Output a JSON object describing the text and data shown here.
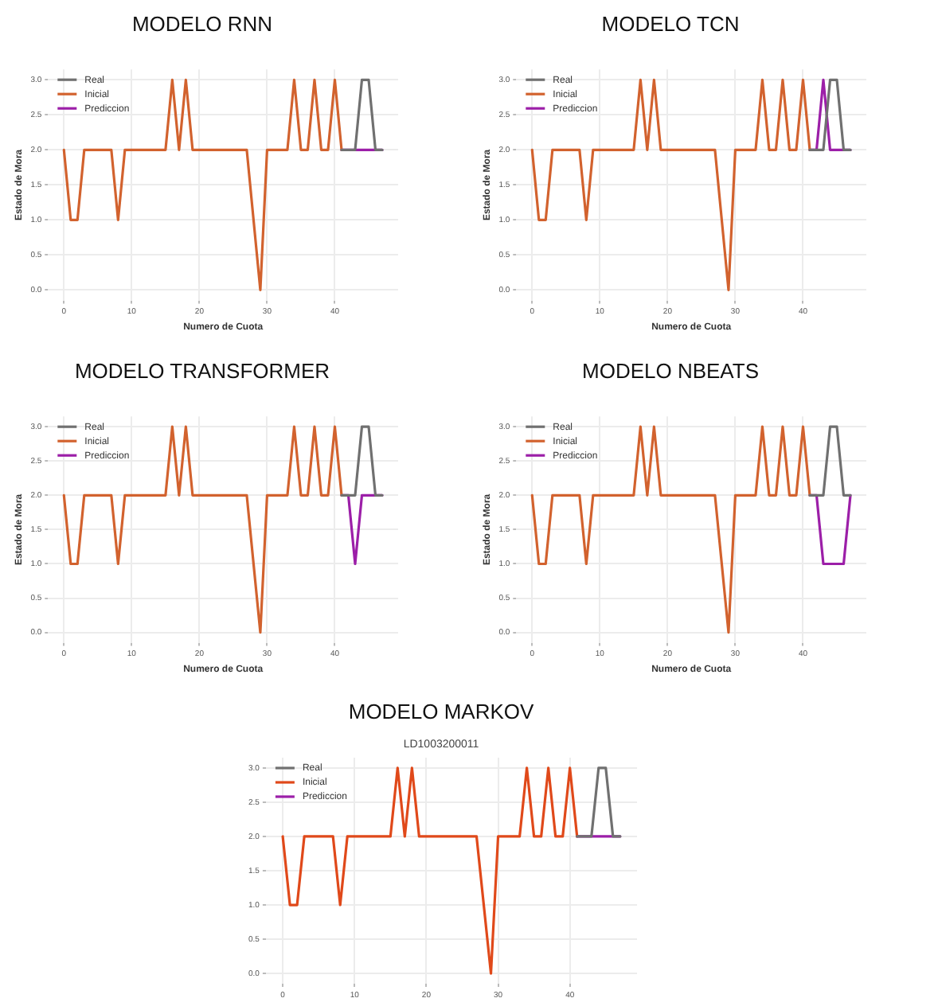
{
  "chart_data": [
    {
      "type": "line",
      "title": "MODELO RNN",
      "xlabel": "Numero de Cuota",
      "ylabel": "Estado de Mora",
      "xlim": [
        -2.35,
        49.35
      ],
      "ylim": [
        -0.15,
        3.15
      ],
      "xticks": [
        0,
        10,
        20,
        30,
        40
      ],
      "yticks": [
        {
          "value": 0,
          "label": "0.0"
        },
        0.5,
        {
          "value": 1,
          "label": "1.0"
        },
        1.5,
        {
          "value": 2,
          "label": "2.0"
        },
        2.5,
        {
          "value": 3,
          "label": "3.0"
        }
      ],
      "grid": true,
      "legend": "top left",
      "marker": "none",
      "line_style": "solid",
      "series": [
        {
          "name": "Real",
          "color": "#707070",
          "x": [
            41,
            42,
            43,
            44,
            45,
            46,
            47
          ],
          "values": [
            2,
            2,
            2,
            3,
            3,
            2,
            2
          ]
        },
        {
          "name": "Inicial",
          "color": "#d2622e",
          "x": [
            0,
            1,
            2,
            3,
            4,
            5,
            6,
            7,
            8,
            9,
            10,
            11,
            12,
            13,
            14,
            15,
            16,
            17,
            18,
            19,
            20,
            21,
            22,
            23,
            24,
            25,
            26,
            27,
            28,
            29,
            30,
            31,
            32,
            33,
            34,
            35,
            36,
            37,
            38,
            39,
            40,
            41
          ],
          "values": [
            2,
            1,
            1,
            2,
            2,
            2,
            2,
            2,
            1,
            2,
            2,
            2,
            2,
            2,
            2,
            2,
            3,
            2,
            3,
            2,
            2,
            2,
            2,
            2,
            2,
            2,
            2,
            2,
            1,
            0,
            2,
            2,
            2,
            2,
            3,
            2,
            2,
            3,
            2,
            2,
            3,
            2
          ]
        },
        {
          "name": "Prediccion",
          "color": "#9c1fa8",
          "x": [
            41,
            42,
            43,
            44,
            45,
            46,
            47
          ],
          "values": [
            2,
            2,
            2,
            2,
            2,
            2,
            2
          ]
        }
      ]
    },
    {
      "type": "line",
      "title": "MODELO TCN",
      "xlabel": "Numero de Cuota",
      "ylabel": "Estado de Mora",
      "xlim": [
        -2.35,
        49.35
      ],
      "ylim": [
        -0.15,
        3.15
      ],
      "xticks": [
        0,
        10,
        20,
        30,
        40
      ],
      "yticks": [
        {
          "value": 0,
          "label": "0.0"
        },
        0.5,
        {
          "value": 1,
          "label": "1.0"
        },
        1.5,
        {
          "value": 2,
          "label": "2.0"
        },
        2.5,
        {
          "value": 3,
          "label": "3.0"
        }
      ],
      "grid": true,
      "legend": "top left",
      "marker": "none",
      "line_style": "solid",
      "series": [
        {
          "name": "Real",
          "color": "#707070",
          "x": [
            41,
            42,
            43,
            44,
            45,
            46,
            47
          ],
          "values": [
            2,
            2,
            2,
            3,
            3,
            2,
            2
          ]
        },
        {
          "name": "Inicial",
          "color": "#d2622e",
          "x": [
            0,
            1,
            2,
            3,
            4,
            5,
            6,
            7,
            8,
            9,
            10,
            11,
            12,
            13,
            14,
            15,
            16,
            17,
            18,
            19,
            20,
            21,
            22,
            23,
            24,
            25,
            26,
            27,
            28,
            29,
            30,
            31,
            32,
            33,
            34,
            35,
            36,
            37,
            38,
            39,
            40,
            41
          ],
          "values": [
            2,
            1,
            1,
            2,
            2,
            2,
            2,
            2,
            1,
            2,
            2,
            2,
            2,
            2,
            2,
            2,
            3,
            2,
            3,
            2,
            2,
            2,
            2,
            2,
            2,
            2,
            2,
            2,
            1,
            0,
            2,
            2,
            2,
            2,
            3,
            2,
            2,
            3,
            2,
            2,
            3,
            2
          ]
        },
        {
          "name": "Prediccion",
          "color": "#9c1fa8",
          "x": [
            41,
            42,
            43,
            44,
            45,
            46,
            47
          ],
          "values": [
            2,
            2,
            3,
            2,
            2,
            2,
            2
          ]
        }
      ]
    },
    {
      "type": "line",
      "title": "MODELO TRANSFORMER",
      "xlabel": "Numero de Cuota",
      "ylabel": "Estado de Mora",
      "xlim": [
        -2.35,
        49.35
      ],
      "ylim": [
        -0.15,
        3.15
      ],
      "xticks": [
        0,
        10,
        20,
        30,
        40
      ],
      "yticks": [
        {
          "value": 0,
          "label": "0.0"
        },
        0.5,
        {
          "value": 1,
          "label": "1.0"
        },
        1.5,
        {
          "value": 2,
          "label": "2.0"
        },
        2.5,
        {
          "value": 3,
          "label": "3.0"
        }
      ],
      "grid": true,
      "legend": "top left",
      "marker": "none",
      "line_style": "solid",
      "series": [
        {
          "name": "Real",
          "color": "#707070",
          "x": [
            41,
            42,
            43,
            44,
            45,
            46,
            47
          ],
          "values": [
            2,
            2,
            2,
            3,
            3,
            2,
            2
          ]
        },
        {
          "name": "Inicial",
          "color": "#d2622e",
          "x": [
            0,
            1,
            2,
            3,
            4,
            5,
            6,
            7,
            8,
            9,
            10,
            11,
            12,
            13,
            14,
            15,
            16,
            17,
            18,
            19,
            20,
            21,
            22,
            23,
            24,
            25,
            26,
            27,
            28,
            29,
            30,
            31,
            32,
            33,
            34,
            35,
            36,
            37,
            38,
            39,
            40,
            41
          ],
          "values": [
            2,
            1,
            1,
            2,
            2,
            2,
            2,
            2,
            1,
            2,
            2,
            2,
            2,
            2,
            2,
            2,
            3,
            2,
            3,
            2,
            2,
            2,
            2,
            2,
            2,
            2,
            2,
            2,
            1,
            0,
            2,
            2,
            2,
            2,
            3,
            2,
            2,
            3,
            2,
            2,
            3,
            2
          ]
        },
        {
          "name": "Prediccion",
          "color": "#9c1fa8",
          "x": [
            41,
            42,
            43,
            44,
            45,
            46,
            47
          ],
          "values": [
            2,
            2,
            1,
            2,
            2,
            2,
            2
          ]
        }
      ]
    },
    {
      "type": "line",
      "title": "MODELO NBEATS",
      "xlabel": "Numero de Cuota",
      "ylabel": "Estado de Mora",
      "xlim": [
        -2.35,
        49.35
      ],
      "ylim": [
        -0.15,
        3.15
      ],
      "xticks": [
        0,
        10,
        20,
        30,
        40
      ],
      "yticks": [
        {
          "value": 0,
          "label": "0.0"
        },
        0.5,
        {
          "value": 1,
          "label": "1.0"
        },
        1.5,
        {
          "value": 2,
          "label": "2.0"
        },
        2.5,
        {
          "value": 3,
          "label": "3.0"
        }
      ],
      "grid": true,
      "legend": "top left",
      "marker": "none",
      "line_style": "solid",
      "series": [
        {
          "name": "Real",
          "color": "#707070",
          "x": [
            41,
            42,
            43,
            44,
            45,
            46,
            47
          ],
          "values": [
            2,
            2,
            2,
            3,
            3,
            2,
            2
          ]
        },
        {
          "name": "Inicial",
          "color": "#d2622e",
          "x": [
            0,
            1,
            2,
            3,
            4,
            5,
            6,
            7,
            8,
            9,
            10,
            11,
            12,
            13,
            14,
            15,
            16,
            17,
            18,
            19,
            20,
            21,
            22,
            23,
            24,
            25,
            26,
            27,
            28,
            29,
            30,
            31,
            32,
            33,
            34,
            35,
            36,
            37,
            38,
            39,
            40,
            41
          ],
          "values": [
            2,
            1,
            1,
            2,
            2,
            2,
            2,
            2,
            1,
            2,
            2,
            2,
            2,
            2,
            2,
            2,
            3,
            2,
            3,
            2,
            2,
            2,
            2,
            2,
            2,
            2,
            2,
            2,
            1,
            0,
            2,
            2,
            2,
            2,
            3,
            2,
            2,
            3,
            2,
            2,
            3,
            2
          ]
        },
        {
          "name": "Prediccion",
          "color": "#9c1fa8",
          "x": [
            41,
            42,
            43,
            44,
            45,
            46,
            47
          ],
          "values": [
            2,
            2,
            1,
            1,
            1,
            1,
            2
          ]
        }
      ]
    },
    {
      "type": "line",
      "title": "MODELO MARKOV",
      "subtitle": "LD1003200011",
      "xlim": [
        -2.35,
        49.35
      ],
      "ylim": [
        -0.15,
        3.15
      ],
      "xticks": [
        0,
        10,
        20,
        30,
        40
      ],
      "yticks": [
        {
          "value": 0,
          "label": "0.0"
        },
        0.5,
        {
          "value": 1,
          "label": "1.0"
        },
        1.5,
        {
          "value": 2,
          "label": "2.0"
        },
        2.5,
        {
          "value": 3,
          "label": "3.0"
        }
      ],
      "grid": true,
      "legend": "top left",
      "marker": "none",
      "line_style": "solid",
      "series": [
        {
          "name": "Real",
          "color": "#707070",
          "x": [
            41,
            42,
            43,
            44,
            45,
            46,
            47
          ],
          "values": [
            2,
            2,
            2,
            3,
            3,
            2,
            2
          ]
        },
        {
          "name": "Inicial",
          "color": "#e0491a",
          "x": [
            0,
            1,
            2,
            3,
            4,
            5,
            6,
            7,
            8,
            9,
            10,
            11,
            12,
            13,
            14,
            15,
            16,
            17,
            18,
            19,
            20,
            21,
            22,
            23,
            24,
            25,
            26,
            27,
            28,
            29,
            30,
            31,
            32,
            33,
            34,
            35,
            36,
            37,
            38,
            39,
            40,
            41
          ],
          "values": [
            2,
            1,
            1,
            2,
            2,
            2,
            2,
            2,
            1,
            2,
            2,
            2,
            2,
            2,
            2,
            2,
            3,
            2,
            3,
            2,
            2,
            2,
            2,
            2,
            2,
            2,
            2,
            2,
            1,
            0,
            2,
            2,
            2,
            2,
            3,
            2,
            2,
            3,
            2,
            2,
            3,
            2
          ]
        },
        {
          "name": "Prediccion",
          "color": "#9c1fa8",
          "x": [
            41,
            42,
            43,
            44,
            45,
            46,
            47
          ],
          "values": [
            2,
            2,
            2,
            2,
            2,
            2,
            2
          ]
        }
      ]
    }
  ]
}
